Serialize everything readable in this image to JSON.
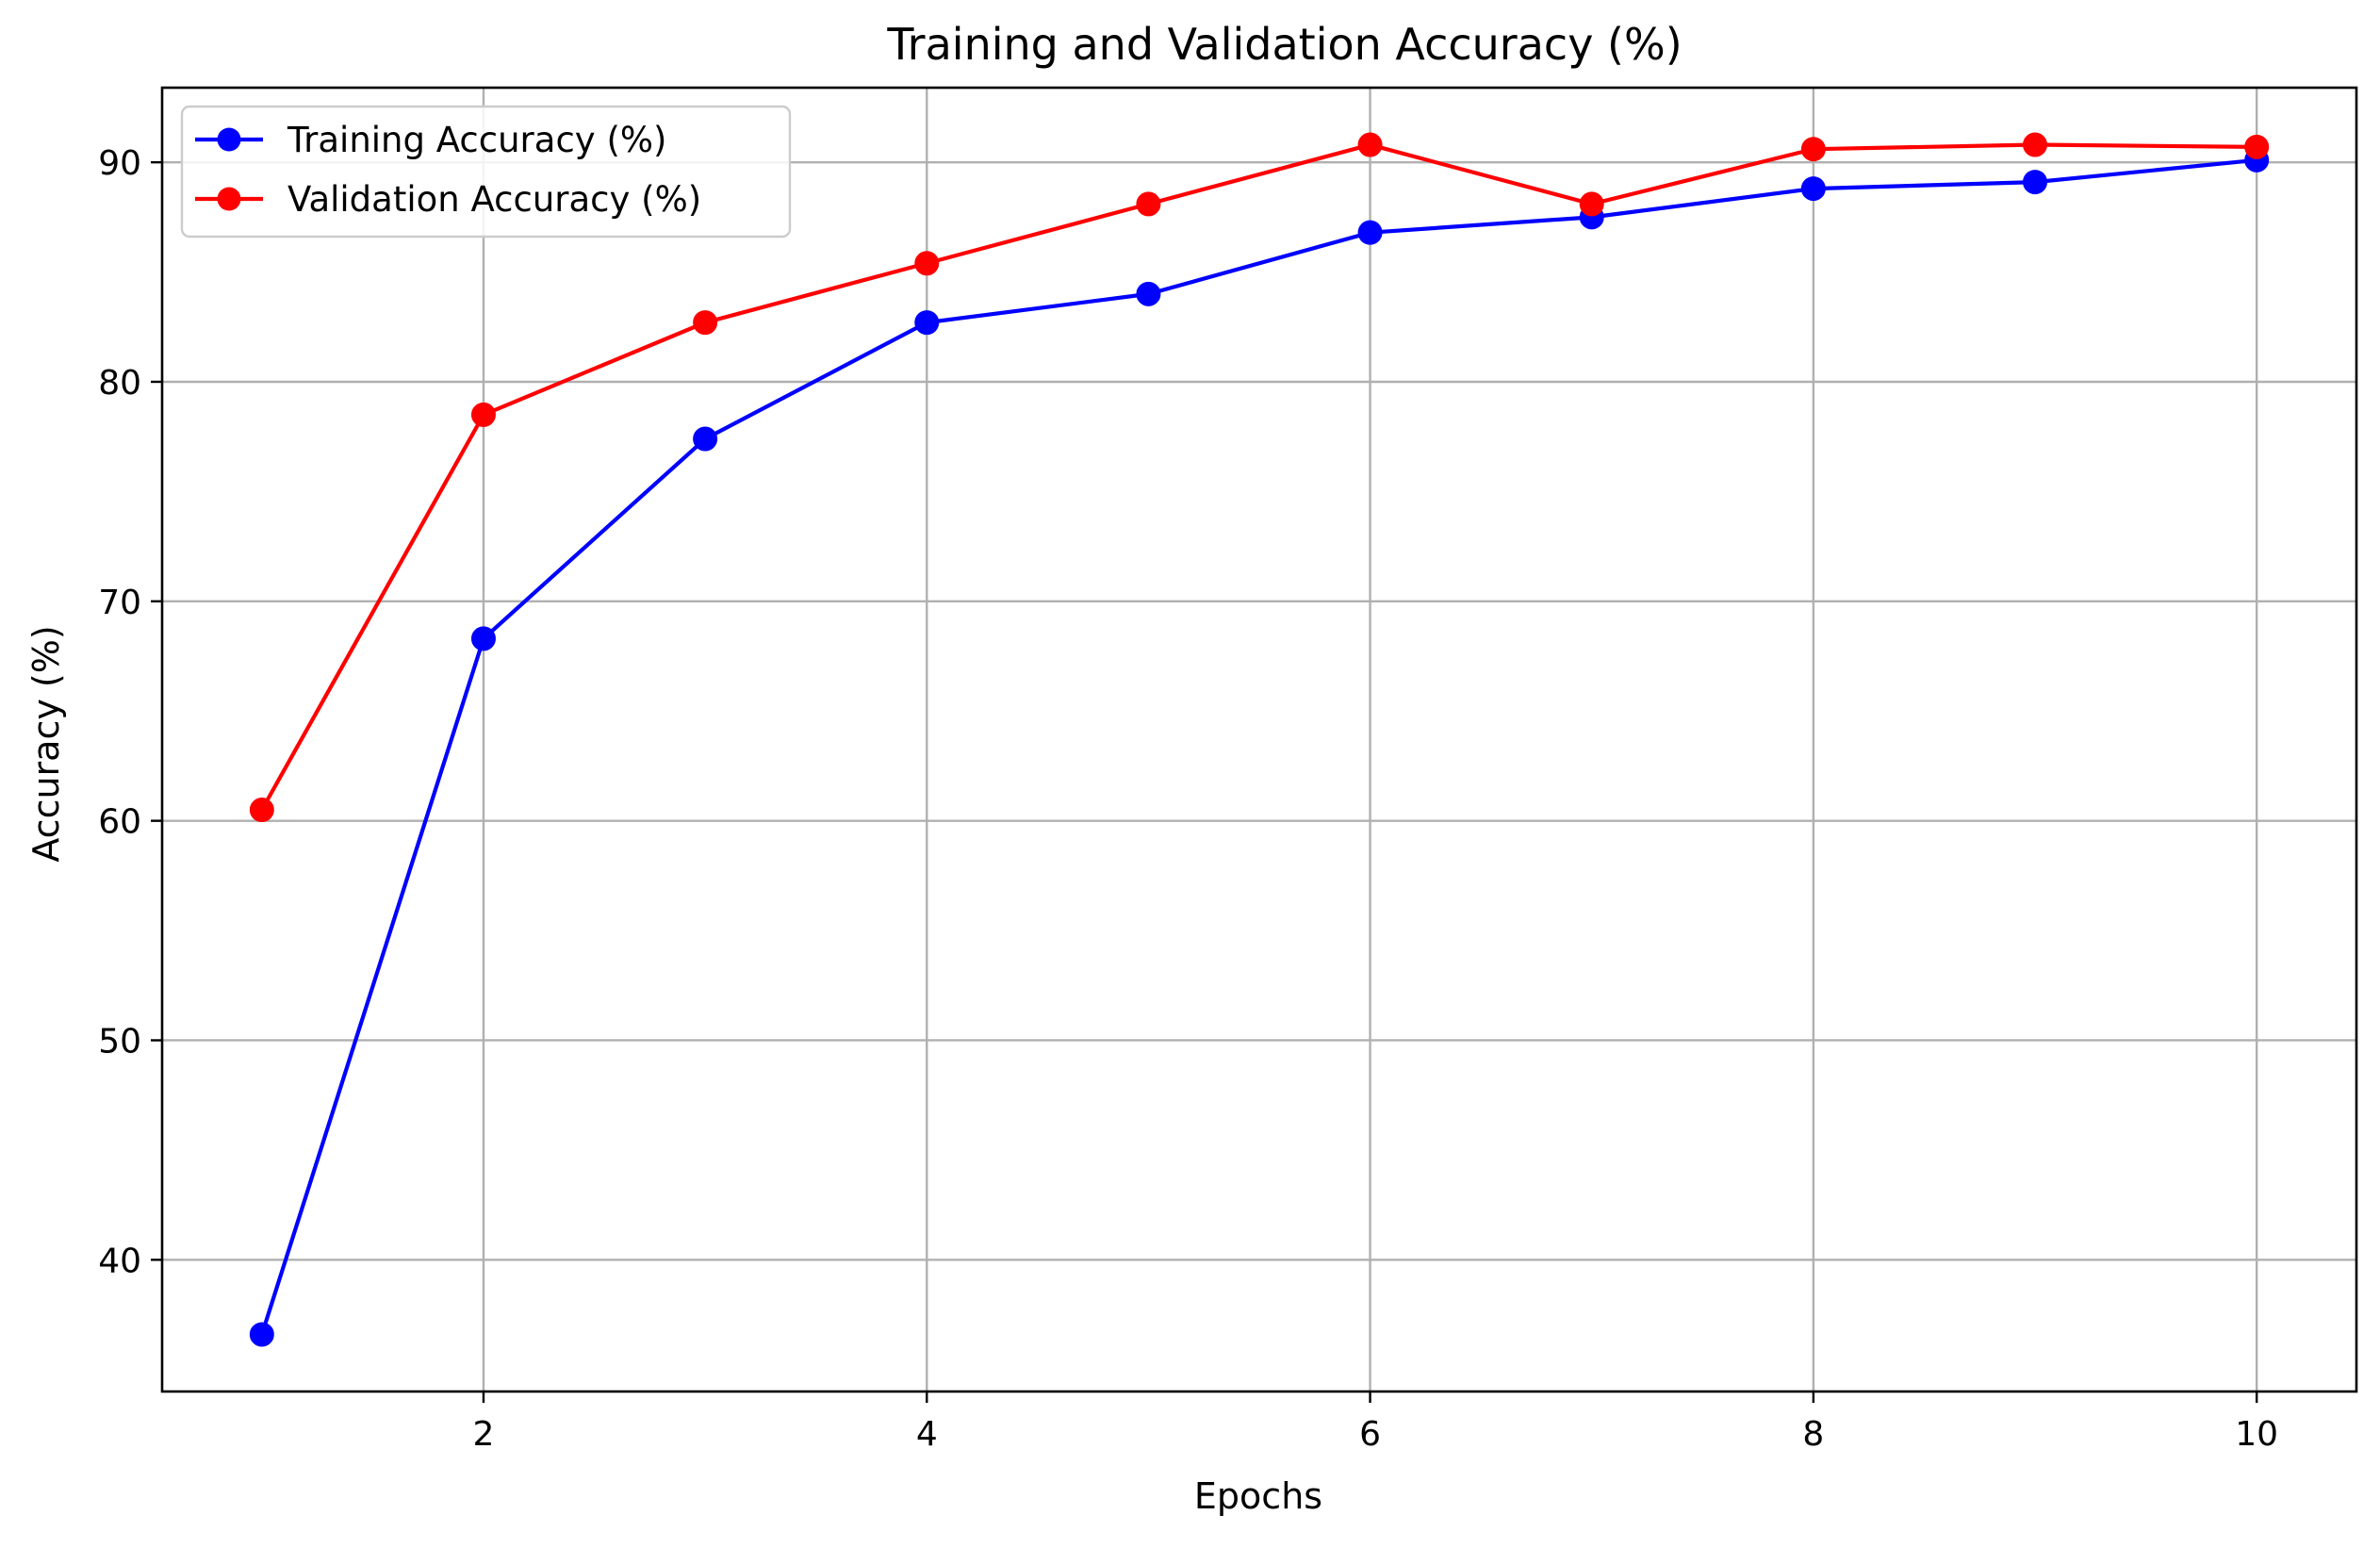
{
  "chart_data": {
    "type": "line",
    "title": "Training and Validation Accuracy (%)",
    "xlabel": "Epochs",
    "ylabel": "Accuracy (%)",
    "x": [
      1,
      2,
      3,
      4,
      5,
      6,
      7,
      8,
      9,
      10
    ],
    "xlim": [
      0.55,
      10.45
    ],
    "ylim": [
      34,
      93.4
    ],
    "xticks": [
      2,
      4,
      6,
      8,
      10
    ],
    "yticks": [
      40,
      50,
      60,
      70,
      80,
      90
    ],
    "grid": true,
    "legend_position": "top-left",
    "series": [
      {
        "name": "Training Accuracy (%)",
        "color": "#0000ff",
        "marker": "circle",
        "values": [
          36.6,
          68.3,
          77.4,
          82.7,
          84.0,
          86.8,
          87.5,
          88.8,
          89.1,
          90.1
        ]
      },
      {
        "name": "Validation Accuracy (%)",
        "color": "#ff0000",
        "marker": "circle",
        "values": [
          60.5,
          78.5,
          82.7,
          85.4,
          88.1,
          90.8,
          88.1,
          90.6,
          90.8,
          90.7
        ]
      }
    ]
  }
}
